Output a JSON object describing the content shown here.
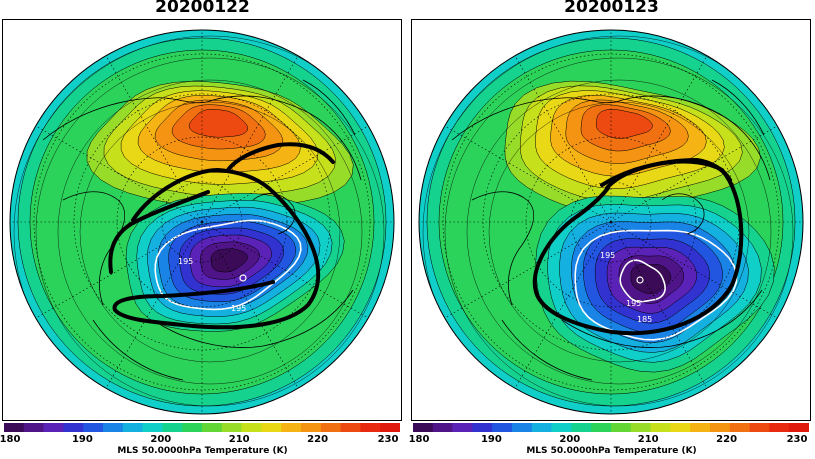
{
  "maps": [
    {
      "id": "left",
      "date": "20200122",
      "contour_labels": [
        "195",
        "195"
      ]
    },
    {
      "id": "right",
      "date": "20200123",
      "contour_labels": [
        "195",
        "195",
        "185"
      ]
    }
  ],
  "colorbar": {
    "title": "MLS 50.0000hPa Temperature (K)",
    "min": 180,
    "max": 230,
    "step": 2.5,
    "ticks": [
      "180",
      "190",
      "200",
      "210",
      "220",
      "230"
    ],
    "colors": [
      "#3b0b58",
      "#4f1488",
      "#5a22b6",
      "#3232d0",
      "#2256e0",
      "#1a84e6",
      "#14b0e0",
      "#10cfc8",
      "#15d38f",
      "#2bd35a",
      "#62d634",
      "#98dc2a",
      "#c6e01c",
      "#e9d815",
      "#f5b414",
      "#f59412",
      "#f07012",
      "#ec4a10",
      "#e82a10",
      "#e01a0c"
    ]
  }
}
